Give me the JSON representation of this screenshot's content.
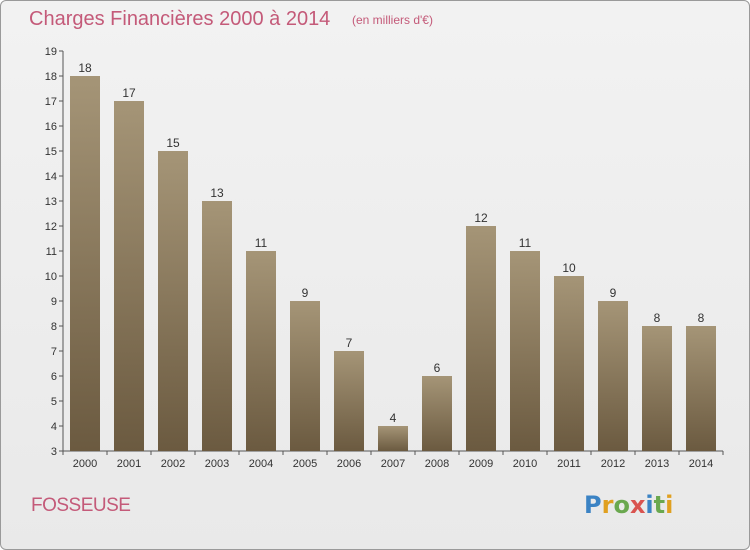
{
  "title": "Charges Financières 2000 à 2014",
  "subtitle": "(en milliers d'€)",
  "commune": "FOSSEUSE",
  "logo_text": "Proxiti",
  "colors": {
    "title": "#c45a79",
    "bar_top": "#a59577",
    "bar_bottom": "#6b5a40",
    "axis": "#555555"
  },
  "chart_data": {
    "type": "bar",
    "title": "Charges Financières 2000 à 2014",
    "subtitle": "(en milliers d'€)",
    "categories": [
      "2000",
      "2001",
      "2002",
      "2003",
      "2004",
      "2005",
      "2006",
      "2007",
      "2008",
      "2009",
      "2010",
      "2011",
      "2012",
      "2013",
      "2014"
    ],
    "values": [
      18,
      17,
      15,
      13,
      11,
      9,
      7,
      4,
      6,
      12,
      11,
      10,
      9,
      8,
      8
    ],
    "ylim": [
      3,
      19
    ],
    "yticks": [
      3,
      4,
      5,
      6,
      7,
      8,
      9,
      10,
      11,
      12,
      13,
      14,
      15,
      16,
      17,
      18,
      19
    ],
    "grid": false
  }
}
